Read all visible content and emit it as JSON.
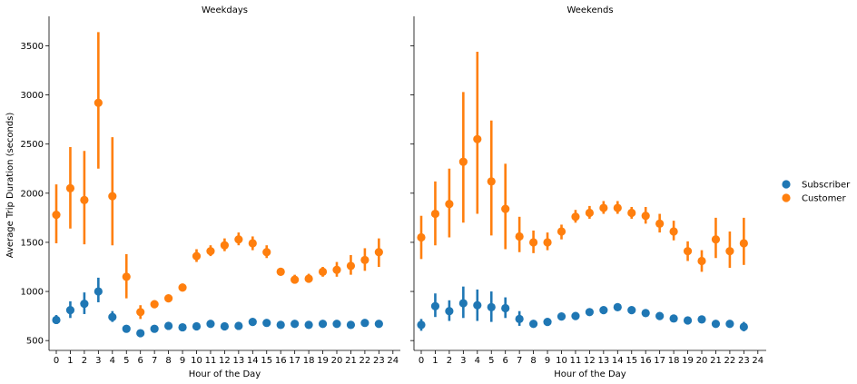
{
  "chart_data": {
    "type": "scatter",
    "style": "point-plot-with-error-bars",
    "xlabel": "Hour of the Day",
    "ylabel": "Average Trip Duration (seconds)",
    "ylim": [
      400,
      3800
    ],
    "yticks": [
      500,
      1000,
      1500,
      2000,
      2500,
      3000,
      3500
    ],
    "xticks": [
      "0",
      "1",
      "2",
      "3",
      "4",
      "5",
      "6",
      "7",
      "8",
      "9",
      "10",
      "11",
      "12",
      "13",
      "14",
      "15",
      "16",
      "17",
      "18",
      "19",
      "20",
      "21",
      "22",
      "23",
      "24"
    ],
    "shared_y": true,
    "grid": false,
    "legend": {
      "placement": "right",
      "entries": [
        {
          "name": "Subscriber",
          "color": "#1f77b4"
        },
        {
          "name": "Customer",
          "color": "#ff7f0e"
        }
      ]
    },
    "panels": [
      {
        "title": "Weekdays",
        "series": [
          {
            "name": "Subscriber",
            "color": "#1f77b4",
            "x": [
              0,
              1,
              2,
              3,
              4,
              5,
              6,
              7,
              8,
              9,
              10,
              11,
              12,
              13,
              14,
              15,
              16,
              17,
              18,
              19,
              20,
              21,
              22,
              23
            ],
            "values": [
              710,
              810,
              875,
              1000,
              740,
              620,
              575,
              620,
              650,
              635,
              645,
              670,
              645,
              650,
              690,
              680,
              660,
              670,
              660,
              670,
              670,
              660,
              680,
              670
            ],
            "ci_low": [
              670,
              730,
              770,
              890,
              690,
              600,
              555,
              600,
              635,
              620,
              630,
              655,
              630,
              635,
              670,
              665,
              645,
              655,
              645,
              655,
              655,
              645,
              665,
              655
            ],
            "ci_high": [
              760,
              900,
              990,
              1140,
              800,
              640,
              595,
              640,
              665,
              650,
              660,
              685,
              660,
              665,
              705,
              695,
              675,
              685,
              675,
              685,
              685,
              675,
              695,
              685
            ]
          },
          {
            "name": "Customer",
            "color": "#ff7f0e",
            "x": [
              0,
              1,
              2,
              3,
              4,
              5,
              6,
              7,
              8,
              9,
              10,
              11,
              12,
              13,
              14,
              15,
              16,
              17,
              18,
              19,
              20,
              21,
              22,
              23
            ],
            "values": [
              1780,
              2050,
              1930,
              2920,
              1970,
              1150,
              790,
              870,
              930,
              1040,
              1360,
              1410,
              1470,
              1530,
              1490,
              1400,
              1200,
              1120,
              1130,
              1200,
              1220,
              1260,
              1320,
              1400
            ],
            "ci_low": [
              1490,
              1640,
              1480,
              2250,
              1470,
              930,
              720,
              830,
              900,
              1000,
              1300,
              1360,
              1410,
              1470,
              1420,
              1340,
              1160,
              1080,
              1090,
              1150,
              1150,
              1170,
              1210,
              1250
            ],
            "ci_high": [
              2090,
              2470,
              2430,
              3640,
              2570,
              1380,
              860,
              910,
              960,
              1080,
              1430,
              1470,
              1540,
              1600,
              1560,
              1470,
              1240,
              1170,
              1180,
              1250,
              1300,
              1370,
              1440,
              1540
            ]
          }
        ]
      },
      {
        "title": "Weekends",
        "series": [
          {
            "name": "Subscriber",
            "color": "#1f77b4",
            "x": [
              0,
              1,
              2,
              3,
              4,
              5,
              6,
              7,
              8,
              9,
              10,
              11,
              12,
              13,
              14,
              15,
              16,
              17,
              18,
              19,
              20,
              21,
              22,
              23
            ],
            "values": [
              660,
              850,
              800,
              880,
              860,
              840,
              830,
              720,
              670,
              690,
              745,
              750,
              790,
              810,
              840,
              810,
              780,
              750,
              725,
              705,
              715,
              670,
              670,
              640
            ],
            "ci_low": [
              600,
              740,
              700,
              730,
              700,
              690,
              730,
              650,
              640,
              660,
              715,
              730,
              770,
              790,
              815,
              780,
              760,
              725,
              705,
              685,
              685,
              640,
              640,
              595
            ],
            "ci_high": [
              720,
              980,
              910,
              1050,
              1020,
              1000,
              940,
              800,
              700,
              720,
              775,
              780,
              810,
              830,
              865,
              840,
              805,
              775,
              745,
              725,
              745,
              700,
              700,
              690
            ]
          },
          {
            "name": "Customer",
            "color": "#ff7f0e",
            "x": [
              0,
              1,
              2,
              3,
              4,
              5,
              6,
              7,
              8,
              9,
              10,
              11,
              12,
              13,
              14,
              15,
              16,
              17,
              18,
              19,
              20,
              21,
              22,
              23
            ],
            "values": [
              1550,
              1790,
              1890,
              2320,
              2550,
              2120,
              1840,
              1560,
              1500,
              1500,
              1610,
              1760,
              1800,
              1850,
              1850,
              1800,
              1770,
              1690,
              1610,
              1410,
              1310,
              1530,
              1410,
              1490
            ],
            "ci_low": [
              1330,
              1470,
              1550,
              1700,
              1790,
              1570,
              1430,
              1400,
              1390,
              1420,
              1530,
              1700,
              1740,
              1790,
              1790,
              1740,
              1690,
              1600,
              1520,
              1310,
              1200,
              1340,
              1240,
              1270
            ],
            "ci_high": [
              1770,
              2120,
              2250,
              3030,
              3440,
              2740,
              2300,
              1760,
              1620,
              1600,
              1680,
              1830,
              1870,
              1920,
              1920,
              1860,
              1860,
              1790,
              1720,
              1510,
              1420,
              1750,
              1610,
              1750
            ]
          }
        ]
      }
    ]
  }
}
